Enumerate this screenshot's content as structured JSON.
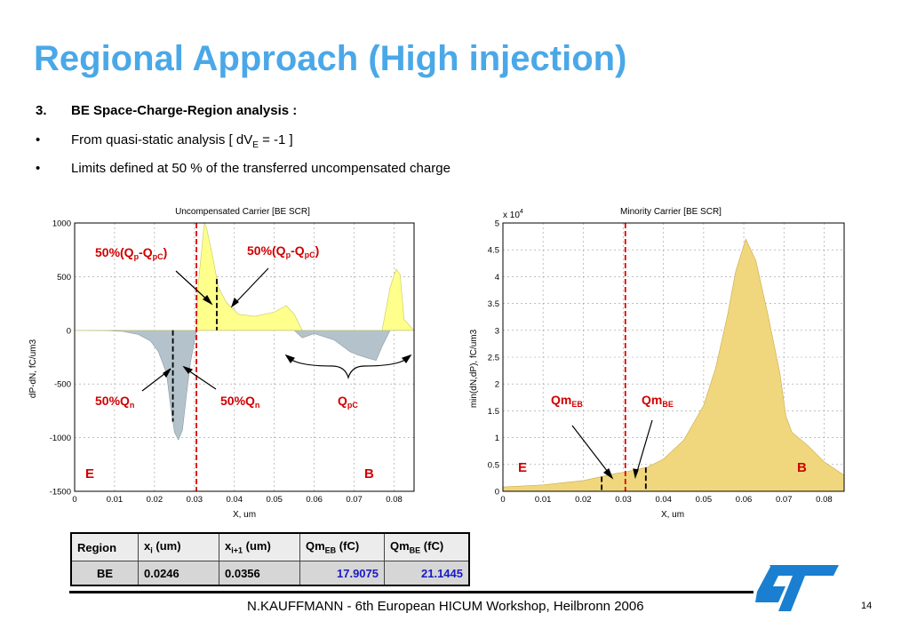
{
  "title": "Regional Approach (High injection)",
  "bullets": [
    {
      "marker": "3.",
      "text": "BE Space-Charge-Region analysis :",
      "bold": true
    },
    {
      "marker": "•",
      "text_pre": "From quasi-static analysis [ dV",
      "sub": "E",
      "text_post": " = -1 ]"
    },
    {
      "marker": "•",
      "text": "Limits defined at 50 % of the transferred uncompensated charge"
    }
  ],
  "colors": {
    "title": "#4aa8e8",
    "accent_red": "#d00000",
    "fill_yellow": "#ffff8c",
    "fill_grey": "#b4c3cb",
    "fill_tan": "#f0d77d",
    "value_blue": "#1919c8"
  },
  "chart_data": [
    {
      "type": "area",
      "title": "Uncompensated Carrier [BE SCR]",
      "xlabel": "X, um",
      "ylabel": "dP-dN, fC/um3",
      "xlim": [
        0,
        0.085
      ],
      "ylim": [
        -1500,
        1000
      ],
      "xticks": [
        "0",
        "0.01",
        "0.02",
        "0.03",
        "0.04",
        "0.05",
        "0.06",
        "0.07",
        "0.08"
      ],
      "yticks": [
        "1000",
        "500",
        "0",
        "-500",
        "-1000",
        "-1500"
      ],
      "series": [
        {
          "x": [
            0,
            0.008,
            0.012,
            0.016,
            0.019,
            0.021,
            0.023,
            0.024,
            0.025,
            0.026,
            0.027,
            0.028,
            0.029,
            0.0305,
            0.031,
            0.0325,
            0.033,
            0.0345,
            0.036,
            0.038,
            0.041,
            0.045,
            0.05,
            0.053,
            0.055,
            0.057,
            0.06,
            0.065,
            0.069,
            0.071,
            0.0735,
            0.0755,
            0.077,
            0.079,
            0.0805,
            0.0815,
            0.0825,
            0.085
          ],
          "y": [
            0,
            -2,
            -10,
            -40,
            -100,
            -200,
            -400,
            -700,
            -950,
            -1020,
            -930,
            -600,
            -300,
            0,
            450,
            1000,
            960,
            700,
            400,
            260,
            150,
            130,
            170,
            230,
            150,
            -70,
            -30,
            -90,
            -200,
            -230,
            -260,
            -280,
            -150,
            400,
            570,
            520,
            100,
            0
          ]
        }
      ],
      "markers": {
        "red_dashed_x": 0.0305,
        "black_dashed_x": [
          0.0246,
          0.0356
        ]
      },
      "annotations": {
        "qp_left": {
          "pre": "50%(Q",
          "sub1": "p",
          "mid": "-Q",
          "sub2": "pC",
          "post": ")"
        },
        "qp_right": {
          "pre": "50%(Q",
          "sub1": "p",
          "mid": "-Q",
          "sub2": "pC",
          "post": ")"
        },
        "qn_left": {
          "pre": "50%Q",
          "sub": "n"
        },
        "qn_right": {
          "pre": "50%Q",
          "sub": "n"
        },
        "qpc": {
          "pre": "Q",
          "sub": "pC"
        },
        "label_e": "E",
        "label_b": "B"
      }
    },
    {
      "type": "area",
      "title": "Minority Carrier [BE SCR]",
      "xlabel": "X, um",
      "ylabel": "min(dN,dP), fC/um3",
      "scale_note": "x 10",
      "scale_exp": "4",
      "xlim": [
        0,
        0.085
      ],
      "ylim": [
        0,
        5
      ],
      "xticks": [
        "0",
        "0.01",
        "0.02",
        "0.03",
        "0.04",
        "0.05",
        "0.06",
        "0.07",
        "0.08"
      ],
      "yticks": [
        "5",
        "4.5",
        "4",
        "3.5",
        "3",
        "2.5",
        "2",
        "1.5",
        "1",
        "0.5",
        "0"
      ],
      "series": [
        {
          "x": [
            0,
            0.01,
            0.02,
            0.025,
            0.028,
            0.0305,
            0.033,
            0.036,
            0.04,
            0.045,
            0.05,
            0.053,
            0.056,
            0.058,
            0.0605,
            0.063,
            0.066,
            0.069,
            0.0705,
            0.072,
            0.076,
            0.08,
            0.085
          ],
          "y": [
            0.08,
            0.12,
            0.2,
            0.28,
            0.33,
            0.36,
            0.4,
            0.45,
            0.6,
            0.95,
            1.6,
            2.3,
            3.3,
            4.1,
            4.7,
            4.3,
            3.3,
            2.2,
            1.4,
            1.1,
            0.85,
            0.55,
            0.3
          ]
        }
      ],
      "markers": {
        "red_dashed_x": 0.0305,
        "black_dashed_x": [
          0.0246,
          0.0356
        ]
      },
      "annotations": {
        "qm_eb": {
          "pre": "Qm",
          "sub": "EB"
        },
        "qm_be": {
          "pre": "Qm",
          "sub": "BE"
        },
        "label_e": "E",
        "label_b": "B"
      }
    }
  ],
  "table": {
    "headers": [
      {
        "pre": "Region",
        "sub": ""
      },
      {
        "pre": "x",
        "sub": "i",
        "post": " (um)"
      },
      {
        "pre": "x",
        "sub": "i+1",
        "post": " (um)"
      },
      {
        "pre": "Qm",
        "sub": "EB",
        "post": " (fC)"
      },
      {
        "pre": "Qm",
        "sub": "BE",
        "post": " (fC)"
      }
    ],
    "row": [
      "BE",
      "0.0246",
      "0.0356",
      "17.9075",
      "21.1445"
    ]
  },
  "footer": "N.KAUFFMANN - 6th European HICUM Workshop, Heilbronn 2006",
  "page_number": "14",
  "logo": "st-logo-icon"
}
